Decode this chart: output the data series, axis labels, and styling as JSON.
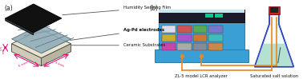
{
  "fig_width": 3.78,
  "fig_height": 0.99,
  "dpi": 100,
  "bg_color": "#ffffff",
  "label_a": "(a)",
  "label_b": "(b)",
  "caption_lcr": "ZL-5 model LCR analyzer",
  "caption_salt": "Saturated salt solution",
  "ann_film": "Humidity Sensing Film",
  "ann_elec": "Ag-Pd electrodes",
  "ann_ceram": "Ceramic Substrates",
  "dim_05": "0.5",
  "dim_mm": "mm",
  "dim_6": "6 mm",
  "dim_3": "3 mm",
  "pink": "#e8006a",
  "gray_dark": "#444444",
  "gray_med": "#888888",
  "gray_light": "#cccccc",
  "black_film": "#111111",
  "elec_color": "#8aabb8",
  "ceramic_top": "#e8e4d0",
  "ceramic_side_l": "#d0cbb8",
  "ceramic_side_r": "#b8b4a0",
  "lcr_blue": "#3a9fd4",
  "lcr_blue_dark": "#2a7faa",
  "lcr_top_dark": "#1a1a2a",
  "lcr_strip_light": "#c8e8f0",
  "orange_wire": "#e88820",
  "flask_edge": "#3344cc",
  "flask_liquid": "#aaddcc",
  "flask_stopper": "#cc2222",
  "flask_body_dark": "#222244"
}
